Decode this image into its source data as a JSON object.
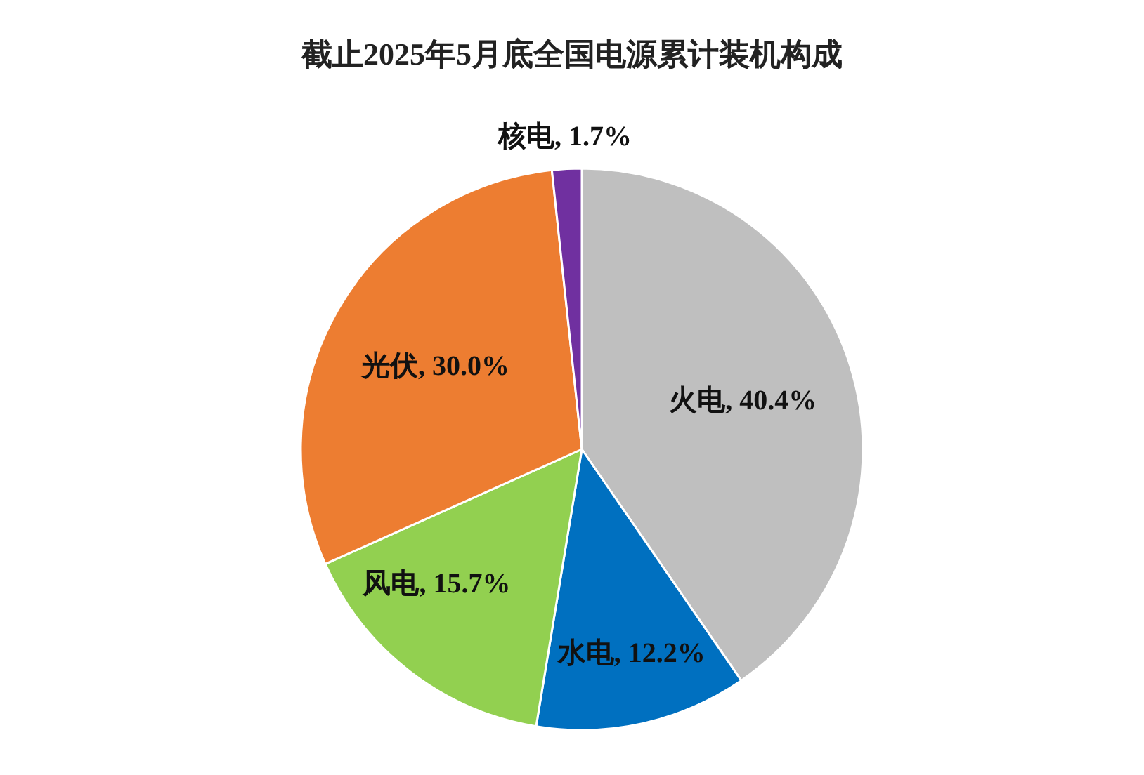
{
  "chart_data": {
    "type": "pie",
    "title": "截止2025年5月底全国电源累计装机构成",
    "categories": [
      "火电",
      "水电",
      "风电",
      "光伏",
      "核电"
    ],
    "values": [
      40.4,
      12.2,
      15.7,
      30.0,
      1.7
    ],
    "colors": [
      "#bfbfbf",
      "#0070c0",
      "#92d050",
      "#ed7d31",
      "#7030a0"
    ],
    "value_labels": [
      ", 40.4%",
      ", 12.2%",
      ", 15.7%",
      ", 30.0%",
      ", 1.7%"
    ]
  }
}
